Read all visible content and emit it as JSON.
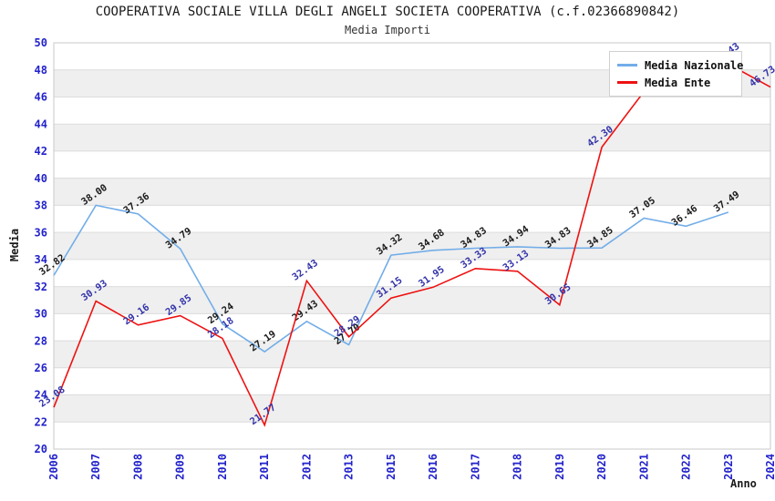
{
  "header": {
    "title": "COOPERATIVA SOCIALE VILLA DEGLI ANGELI SOCIETA COOPERATIVA (c.f.02366890842)",
    "subtitle": "Media Importi"
  },
  "chart_data": {
    "type": "line",
    "title": "COOPERATIVA SOCIALE VILLA DEGLI ANGELI SOCIETA COOPERATIVA (c.f.02366890842)",
    "subtitle": "Media Importi",
    "xlabel": "Anno",
    "ylabel": "Media",
    "ylim": [
      20,
      50
    ],
    "ytick_step": 2,
    "grid": true,
    "legend_position": "top-right",
    "categories": [
      "2006",
      "2007",
      "2008",
      "2009",
      "2010",
      "2011",
      "2012",
      "2013",
      "2015",
      "2016",
      "2017",
      "2018",
      "2019",
      "2020",
      "2021",
      "2022",
      "2023",
      "2024"
    ],
    "series": [
      {
        "name": "Media Nazionale",
        "color": "#72ade8",
        "label_color": "#1a1a1a",
        "values": [
          32.82,
          38.0,
          37.36,
          34.79,
          29.24,
          27.19,
          29.43,
          27.7,
          34.32,
          34.68,
          34.83,
          34.94,
          34.83,
          34.85,
          37.05,
          36.46,
          37.49,
          null
        ]
      },
      {
        "name": "Media Ente",
        "color": "#ee1111",
        "label_color": "#3333aa",
        "values": [
          23.08,
          30.93,
          29.16,
          29.85,
          28.18,
          21.77,
          32.43,
          28.29,
          31.15,
          31.95,
          33.33,
          33.13,
          30.65,
          42.3,
          46.4,
          47.4,
          48.43,
          46.73
        ]
      }
    ],
    "style": {
      "band_color": "#efefef",
      "grid_color": "#dcdcdc",
      "border_color": "#c8c8c8",
      "tick_color": "#2222cc"
    }
  }
}
